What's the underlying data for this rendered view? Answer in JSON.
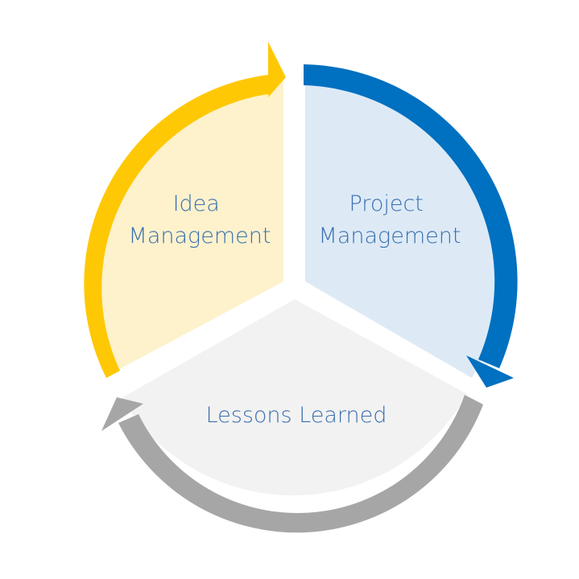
{
  "diagram": {
    "segments": [
      {
        "id": "idea",
        "label_lines": [
          "Idea",
          "Management"
        ],
        "fill_color": "#fdf2cc",
        "arrow_color": "#ffc805"
      },
      {
        "id": "project",
        "label_lines": [
          "Project",
          "Management"
        ],
        "fill_color": "#ddeaf6",
        "arrow_color": "#0070c0"
      },
      {
        "id": "lessons",
        "label_lines": [
          "Lessons Learned"
        ],
        "fill_color": "#f2f2f2",
        "arrow_color": "#a6a6a6"
      }
    ],
    "label_color": "#3a6fae"
  }
}
